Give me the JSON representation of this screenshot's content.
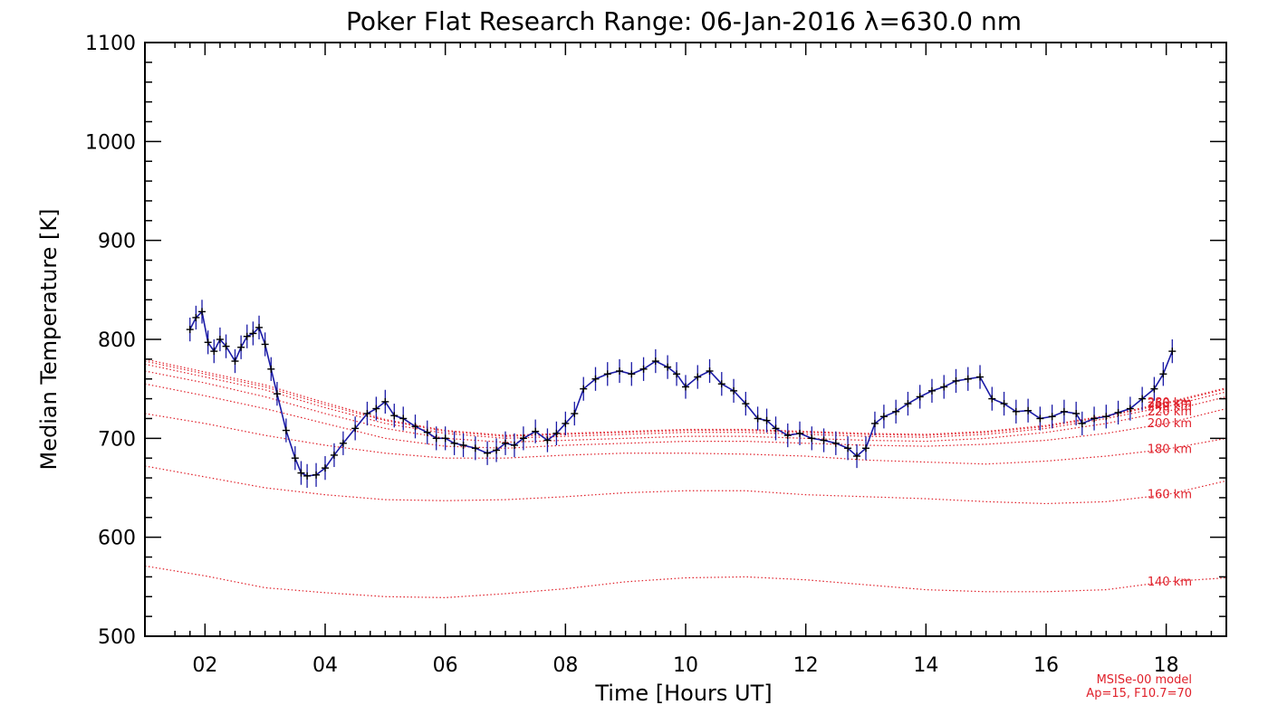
{
  "chart_data": {
    "type": "line",
    "title": "Poker Flat Research Range: 06-Jan-2016 λ=630.0 nm",
    "xlabel": "Time [Hours UT]",
    "ylabel": "Median Temperature [K]",
    "xlim": [
      1.0,
      19.0
    ],
    "ylim": [
      500,
      1100
    ],
    "xticks": [
      2,
      4,
      6,
      8,
      10,
      12,
      14,
      16,
      18
    ],
    "xtick_labels": [
      "02",
      "04",
      "06",
      "08",
      "10",
      "12",
      "14",
      "16",
      "18"
    ],
    "yticks": [
      500,
      600,
      700,
      800,
      900,
      1000,
      1100
    ],
    "ytick_labels": [
      "500",
      "600",
      "700",
      "800",
      "900",
      "1000",
      "1100"
    ],
    "note_lines": [
      "MSISe-00 model",
      "Ap=15, F10.7=70"
    ],
    "colors": {
      "measured": "#1a1aa6",
      "marker": "#000000",
      "model": "#e0202a",
      "axis": "#000000"
    },
    "series": [
      {
        "name": "Median Temperature",
        "error_bar": 12,
        "x": [
          1.75,
          1.85,
          1.95,
          2.05,
          2.15,
          2.25,
          2.35,
          2.5,
          2.6,
          2.7,
          2.8,
          2.9,
          3.0,
          3.1,
          3.2,
          3.35,
          3.5,
          3.6,
          3.7,
          3.85,
          4.0,
          4.15,
          4.3,
          4.5,
          4.7,
          4.85,
          5.0,
          5.15,
          5.3,
          5.5,
          5.7,
          5.85,
          6.0,
          6.15,
          6.3,
          6.5,
          6.7,
          6.85,
          7.0,
          7.15,
          7.3,
          7.5,
          7.7,
          7.85,
          8.0,
          8.15,
          8.3,
          8.5,
          8.7,
          8.9,
          9.1,
          9.3,
          9.5,
          9.7,
          9.85,
          10.0,
          10.2,
          10.4,
          10.6,
          10.8,
          11.0,
          11.2,
          11.35,
          11.5,
          11.7,
          11.9,
          12.1,
          12.3,
          12.5,
          12.7,
          12.85,
          13.0,
          13.15,
          13.3,
          13.5,
          13.7,
          13.9,
          14.1,
          14.3,
          14.5,
          14.7,
          14.9,
          15.1,
          15.3,
          15.5,
          15.7,
          15.9,
          16.1,
          16.3,
          16.5,
          16.6,
          16.8,
          17.0,
          17.2,
          17.4,
          17.6,
          17.8,
          17.95,
          18.1
        ],
        "values": [
          810,
          822,
          828,
          797,
          788,
          800,
          793,
          778,
          792,
          803,
          806,
          812,
          795,
          770,
          745,
          708,
          680,
          665,
          662,
          663,
          670,
          683,
          695,
          710,
          725,
          730,
          737,
          723,
          720,
          712,
          706,
          700,
          700,
          695,
          693,
          690,
          685,
          688,
          695,
          693,
          700,
          707,
          698,
          705,
          715,
          725,
          750,
          760,
          765,
          768,
          765,
          770,
          778,
          772,
          765,
          752,
          762,
          768,
          755,
          748,
          735,
          720,
          718,
          710,
          703,
          705,
          700,
          698,
          695,
          690,
          682,
          690,
          715,
          722,
          727,
          735,
          742,
          748,
          752,
          758,
          760,
          762,
          740,
          735,
          727,
          728,
          720,
          722,
          727,
          725,
          715,
          720,
          722,
          726,
          730,
          740,
          750,
          765,
          788
        ]
      }
    ],
    "model_curves": [
      {
        "label": "140 km",
        "values": [
          571,
          561,
          549,
          544,
          540,
          539,
          543,
          548,
          555,
          559,
          560,
          557,
          552,
          547,
          545,
          545,
          547,
          555,
          559
        ]
      },
      {
        "label": "160 km",
        "values": [
          672,
          661,
          650,
          643,
          638,
          637,
          638,
          641,
          645,
          647,
          647,
          643,
          641,
          639,
          636,
          634,
          636,
          643,
          657
        ]
      },
      {
        "label": "180 km",
        "values": [
          725,
          715,
          703,
          693,
          685,
          680,
          680,
          683,
          685,
          685,
          684,
          682,
          678,
          676,
          674,
          677,
          682,
          689,
          700
        ]
      },
      {
        "label": "200 km",
        "values": [
          755,
          743,
          730,
          715,
          700,
          692,
          690,
          693,
          695,
          697,
          697,
          695,
          693,
          692,
          694,
          698,
          705,
          715,
          730
        ]
      },
      {
        "label": "220 km",
        "values": [
          768,
          756,
          742,
          725,
          710,
          700,
          696,
          698,
          700,
          702,
          702,
          700,
          698,
          697,
          700,
          706,
          715,
          727,
          742
        ]
      },
      {
        "label": "240 km",
        "values": [
          775,
          762,
          749,
          731,
          715,
          705,
          700,
          702,
          704,
          706,
          706,
          704,
          702,
          701,
          704,
          710,
          720,
          732,
          747
        ]
      },
      {
        "label": "260 km",
        "values": [
          778,
          765,
          752,
          734,
          718,
          707,
          702,
          704,
          706,
          708,
          708,
          706,
          704,
          703,
          706,
          712,
          722,
          735,
          750
        ]
      },
      {
        "label": "280 km",
        "values": [
          780,
          767,
          754,
          736,
          719,
          708,
          703,
          705,
          707,
          709,
          709,
          707,
          705,
          704,
          707,
          713,
          723,
          736,
          751
        ]
      }
    ],
    "model_x": [
      1,
      2,
      3,
      4,
      5,
      6,
      7,
      8,
      9,
      10,
      11,
      12,
      13,
      14,
      15,
      16,
      17,
      18,
      19
    ]
  }
}
